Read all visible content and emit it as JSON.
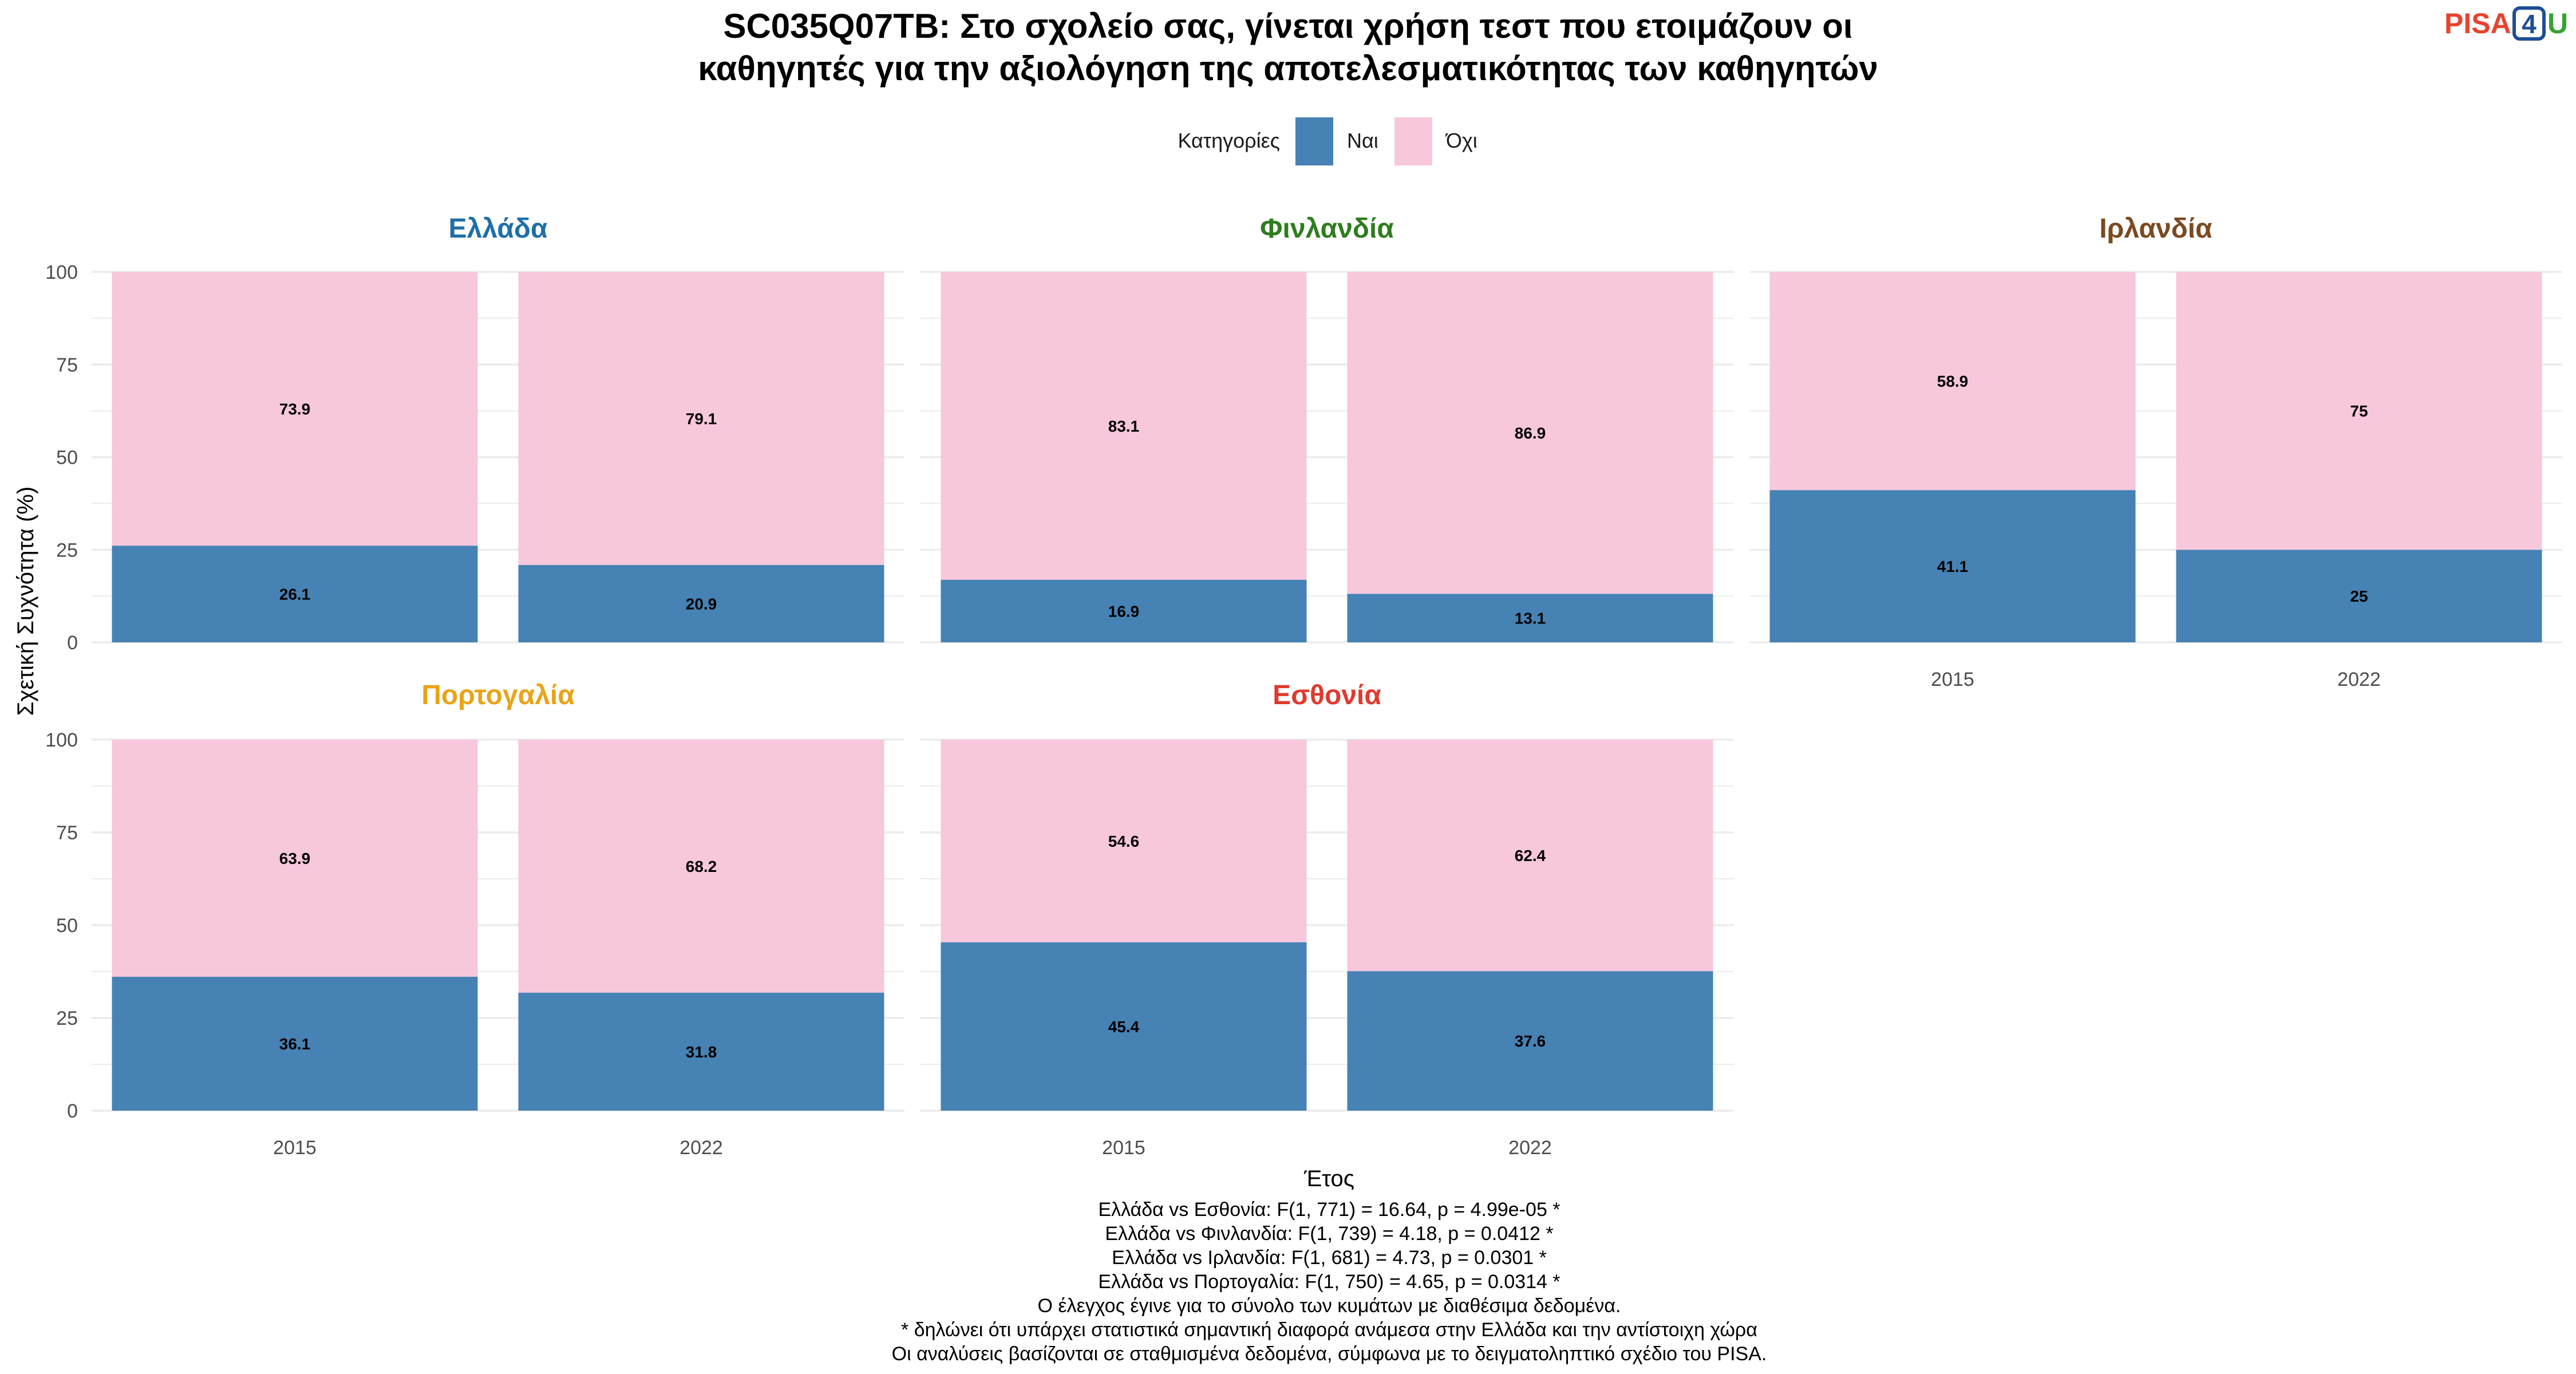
{
  "title_line1": "SC035Q07TB: Στο σχολείο σας, γίνεται χρήση τεστ που ετοιμάζουν οι",
  "title_line2": "καθηγητές για την αξιολόγηση της αποτελεσματικότητας των καθηγητών",
  "logo": {
    "text": "PISA",
    "digit": "4",
    "letter": "U",
    "colors": {
      "text": "#e8432e",
      "digit": "#1f4e96",
      "letter": "#3aa135"
    }
  },
  "legend": {
    "title": "Κατηγορίες",
    "position": "top"
  },
  "colors": {
    "yes": "#4682b4",
    "no": "#f7c7dc",
    "grid": "#ebebeb",
    "text": "#4d4d4d"
  },
  "chart_data": {
    "type": "bar",
    "stacked": true,
    "categories": [
      "2015",
      "2022"
    ],
    "xlabel": "Έτος",
    "ylabel": "Σχετική Συχνότητα (%)",
    "ylim": [
      0,
      100
    ],
    "yticks": [
      0,
      25,
      50,
      75,
      100
    ],
    "grid": true,
    "series_names": [
      "Ναι",
      "Όχι"
    ],
    "panels": [
      {
        "name": "Ελλάδα",
        "color": "#1f6fa8",
        "series": [
          {
            "name": "Ναι",
            "values": [
              26.1,
              20.9
            ]
          },
          {
            "name": "Όχι",
            "values": [
              73.9,
              79.1
            ]
          }
        ]
      },
      {
        "name": "Φινλανδία",
        "color": "#2e7d1f",
        "series": [
          {
            "name": "Ναι",
            "values": [
              16.9,
              13.1
            ]
          },
          {
            "name": "Όχι",
            "values": [
              83.1,
              86.9
            ]
          }
        ]
      },
      {
        "name": "Ιρλανδία",
        "color": "#7a4a21",
        "series": [
          {
            "name": "Ναι",
            "values": [
              41.1,
              25
            ]
          },
          {
            "name": "Όχι",
            "values": [
              58.9,
              75
            ]
          }
        ]
      },
      {
        "name": "Πορτογαλία",
        "color": "#e8a317",
        "series": [
          {
            "name": "Ναι",
            "values": [
              36.1,
              31.8
            ]
          },
          {
            "name": "Όχι",
            "values": [
              63.9,
              68.2
            ]
          }
        ]
      },
      {
        "name": "Εσθονία",
        "color": "#e03a2e",
        "series": [
          {
            "name": "Ναι",
            "values": [
              45.4,
              37.6
            ]
          },
          {
            "name": "Όχι",
            "values": [
              54.6,
              62.4
            ]
          }
        ]
      }
    ]
  },
  "footnotes": [
    "Ελλάδα vs Εσθονία: F(1, 771) = 16.64, p = 4.99e-05 *",
    "Ελλάδα vs Φινλανδία: F(1, 739) = 4.18, p = 0.0412 *",
    "Ελλάδα vs Ιρλανδία: F(1, 681) = 4.73, p = 0.0301 *",
    "Ελλάδα vs Πορτογαλία: F(1, 750) = 4.65, p = 0.0314 *",
    "Ο έλεγχος έγινε για το σύνολο των κυμάτων με διαθέσιμα δεδομένα.",
    "* δηλώνει ότι υπάρχει στατιστικά σημαντική διαφορά ανάμεσα στην Ελλάδα και την αντίστοιχη χώρα",
    "Οι αναλύσεις βασίζονται σε σταθμισμένα δεδομένα, σύμφωνα με το δειγματοληπτικό σχέδιο του PISA."
  ]
}
